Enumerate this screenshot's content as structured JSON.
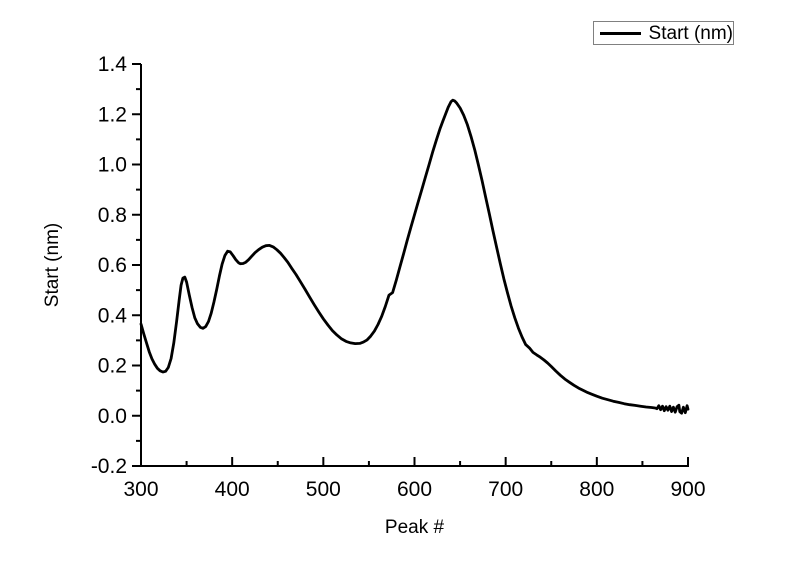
{
  "chart_data": {
    "type": "line",
    "title": "",
    "xlabel": "Peak #",
    "ylabel": "Start (nm)",
    "xlim": [
      300,
      900
    ],
    "ylim": [
      -0.2,
      1.4
    ],
    "grid": false,
    "x_major_ticks": [
      300,
      400,
      500,
      600,
      700,
      800,
      900
    ],
    "x_tick_labels": [
      "300",
      "400",
      "500",
      "600",
      "700",
      "800",
      "900"
    ],
    "x_minor_ticks": [
      350,
      450,
      550,
      650,
      750,
      850
    ],
    "y_major_ticks": [
      -0.2,
      0.0,
      0.2,
      0.4,
      0.6,
      0.8,
      1.0,
      1.2,
      1.4
    ],
    "y_tick_labels": [
      "-0.2",
      "0.0",
      "0.2",
      "0.4",
      "0.6",
      "0.8",
      "1.0",
      "1.2",
      "1.4"
    ],
    "y_minor_ticks": [
      -0.1,
      0.1,
      0.3,
      0.5,
      0.7,
      0.9,
      1.1,
      1.3
    ],
    "legend": {
      "position": "top-right",
      "entries": [
        {
          "label": "Start (nm)",
          "line_color": "#000000"
        }
      ]
    },
    "series": [
      {
        "name": "Start (nm)",
        "color": "#000000",
        "points": [
          [
            300,
            0.365
          ],
          [
            303,
            0.327
          ],
          [
            306,
            0.29
          ],
          [
            309,
            0.255
          ],
          [
            312,
            0.227
          ],
          [
            315,
            0.205
          ],
          [
            318,
            0.189
          ],
          [
            321,
            0.179
          ],
          [
            324,
            0.174
          ],
          [
            327,
            0.177
          ],
          [
            330,
            0.192
          ],
          [
            333,
            0.228
          ],
          [
            336,
            0.29
          ],
          [
            339,
            0.375
          ],
          [
            342,
            0.465
          ],
          [
            344,
            0.52
          ],
          [
            346,
            0.548
          ],
          [
            348,
            0.552
          ],
          [
            350,
            0.532
          ],
          [
            353,
            0.48
          ],
          [
            356,
            0.43
          ],
          [
            359,
            0.39
          ],
          [
            362,
            0.366
          ],
          [
            365,
            0.352
          ],
          [
            368,
            0.348
          ],
          [
            371,
            0.355
          ],
          [
            374,
            0.375
          ],
          [
            377,
            0.408
          ],
          [
            380,
            0.452
          ],
          [
            383,
            0.503
          ],
          [
            386,
            0.556
          ],
          [
            389,
            0.603
          ],
          [
            392,
            0.638
          ],
          [
            395,
            0.655
          ],
          [
            398,
            0.652
          ],
          [
            401,
            0.637
          ],
          [
            404,
            0.621
          ],
          [
            407,
            0.609
          ],
          [
            409,
            0.605
          ],
          [
            412,
            0.606
          ],
          [
            415,
            0.611
          ],
          [
            418,
            0.621
          ],
          [
            421,
            0.633
          ],
          [
            425,
            0.649
          ],
          [
            429,
            0.661
          ],
          [
            433,
            0.671
          ],
          [
            437,
            0.677
          ],
          [
            441,
            0.678
          ],
          [
            445,
            0.672
          ],
          [
            449,
            0.661
          ],
          [
            453,
            0.647
          ],
          [
            457,
            0.63
          ],
          [
            461,
            0.611
          ],
          [
            465,
            0.589
          ],
          [
            470,
            0.562
          ],
          [
            475,
            0.533
          ],
          [
            480,
            0.503
          ],
          [
            485,
            0.472
          ],
          [
            490,
            0.442
          ],
          [
            495,
            0.413
          ],
          [
            500,
            0.386
          ],
          [
            505,
            0.361
          ],
          [
            510,
            0.339
          ],
          [
            515,
            0.321
          ],
          [
            520,
            0.306
          ],
          [
            525,
            0.296
          ],
          [
            530,
            0.29
          ],
          [
            535,
            0.287
          ],
          [
            540,
            0.288
          ],
          [
            544,
            0.293
          ],
          [
            548,
            0.302
          ],
          [
            552,
            0.317
          ],
          [
            556,
            0.337
          ],
          [
            560,
            0.363
          ],
          [
            564,
            0.396
          ],
          [
            568,
            0.435
          ],
          [
            572,
            0.48
          ],
          [
            576,
            0.49
          ],
          [
            580,
            0.54
          ],
          [
            584,
            0.592
          ],
          [
            588,
            0.645
          ],
          [
            592,
            0.698
          ],
          [
            596,
            0.75
          ],
          [
            600,
            0.8
          ],
          [
            604,
            0.85
          ],
          [
            608,
            0.9
          ],
          [
            612,
            0.95
          ],
          [
            616,
            1.0
          ],
          [
            620,
            1.05
          ],
          [
            624,
            1.098
          ],
          [
            628,
            1.142
          ],
          [
            631,
            1.172
          ],
          [
            634,
            1.2
          ],
          [
            637,
            1.228
          ],
          [
            640,
            1.25
          ],
          [
            642,
            1.256
          ],
          [
            644,
            1.253
          ],
          [
            646,
            1.246
          ],
          [
            650,
            1.225
          ],
          [
            654,
            1.196
          ],
          [
            658,
            1.158
          ],
          [
            662,
            1.112
          ],
          [
            666,
            1.059
          ],
          [
            670,
            1.0
          ],
          [
            674,
            0.937
          ],
          [
            678,
            0.871
          ],
          [
            682,
            0.804
          ],
          [
            686,
            0.737
          ],
          [
            690,
            0.671
          ],
          [
            694,
            0.607
          ],
          [
            698,
            0.546
          ],
          [
            702,
            0.489
          ],
          [
            706,
            0.437
          ],
          [
            710,
            0.39
          ],
          [
            714,
            0.349
          ],
          [
            718,
            0.313
          ],
          [
            722,
            0.283
          ],
          [
            726,
            0.27
          ],
          [
            730,
            0.252
          ],
          [
            734,
            0.242
          ],
          [
            738,
            0.233
          ],
          [
            742,
            0.222
          ],
          [
            746,
            0.21
          ],
          [
            750,
            0.196
          ],
          [
            755,
            0.178
          ],
          [
            760,
            0.161
          ],
          [
            765,
            0.146
          ],
          [
            770,
            0.133
          ],
          [
            775,
            0.121
          ],
          [
            780,
            0.11
          ],
          [
            785,
            0.101
          ],
          [
            790,
            0.092
          ],
          [
            795,
            0.085
          ],
          [
            800,
            0.078
          ],
          [
            806,
            0.07
          ],
          [
            812,
            0.064
          ],
          [
            818,
            0.058
          ],
          [
            824,
            0.053
          ],
          [
            830,
            0.048
          ],
          [
            836,
            0.044
          ],
          [
            842,
            0.041
          ],
          [
            848,
            0.038
          ],
          [
            854,
            0.035
          ],
          [
            860,
            0.033
          ],
          [
            864,
            0.031
          ],
          [
            866,
            0.028
          ],
          [
            868,
            0.04
          ],
          [
            870,
            0.024
          ],
          [
            872,
            0.038
          ],
          [
            874,
            0.02
          ],
          [
            876,
            0.036
          ],
          [
            878,
            0.022
          ],
          [
            880,
            0.038
          ],
          [
            882,
            0.017
          ],
          [
            884,
            0.034
          ],
          [
            886,
            0.014
          ],
          [
            888,
            0.036
          ],
          [
            890,
            0.042
          ],
          [
            891,
            0.016
          ],
          [
            893,
            0.01
          ],
          [
            895,
            0.034
          ],
          [
            897,
            0.012
          ],
          [
            899,
            0.04
          ],
          [
            900,
            0.026
          ]
        ]
      }
    ]
  },
  "colors": {
    "curve": "#000000",
    "axis": "#000000",
    "tick_label": "#000000",
    "legend_border": "#808080",
    "background": "#ffffff"
  }
}
